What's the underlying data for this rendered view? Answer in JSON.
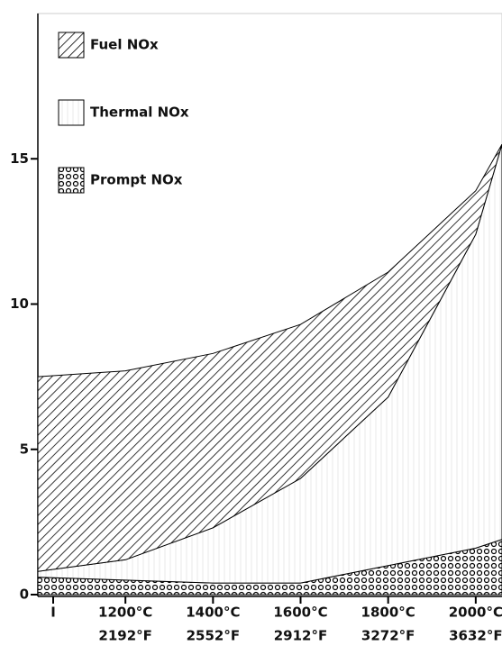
{
  "chart_data": {
    "type": "stacked-area",
    "x": [
      1000,
      1200,
      1400,
      1600,
      1800,
      2000,
      2060
    ],
    "series": [
      {
        "name": "Prompt NOx",
        "color": "#000000",
        "values": [
          0.6,
          0.5,
          0.4,
          0.4,
          1.0,
          1.6,
          1.9
        ]
      },
      {
        "name": "Thermal NOx",
        "color": "#000000",
        "values": [
          0.2,
          0.7,
          1.9,
          3.6,
          5.8,
          10.8,
          13.6
        ]
      },
      {
        "name": "Fuel NOx",
        "color": "#000000",
        "values": [
          6.7,
          6.5,
          6.0,
          5.3,
          4.3,
          1.5,
          0.0
        ]
      }
    ],
    "xlim": [
      1000,
      2060
    ],
    "xticks": [
      {
        "value": 1035,
        "label": "I"
      },
      {
        "value": 1200,
        "label": "1200°C"
      },
      {
        "value": 1400,
        "label": "1400°C"
      },
      {
        "value": 1600,
        "label": "1600°C"
      },
      {
        "value": 1800,
        "label": "1800°C"
      },
      {
        "value": 2000,
        "label": "2000°C"
      }
    ],
    "xtick_sublabels": [
      null,
      "2192°F",
      "2552°F",
      "2912°F",
      "3272°F",
      "3632°F"
    ],
    "ylim": [
      0,
      20
    ],
    "yticks": [
      0,
      5,
      10,
      15
    ]
  }
}
